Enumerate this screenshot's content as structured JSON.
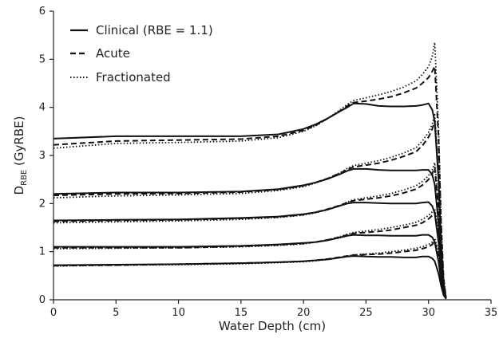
{
  "chart_data": {
    "type": "line",
    "xlabel": "Water Depth (cm)",
    "ylabel": {
      "main": "D",
      "subscript": "RBE",
      "unit": " (GyRBE)"
    },
    "xlim": [
      0,
      35
    ],
    "ylim": [
      0,
      6
    ],
    "xticks": [
      0,
      5,
      10,
      15,
      20,
      25,
      30,
      35
    ],
    "yticks": [
      0,
      1,
      2,
      3,
      4,
      5,
      6
    ],
    "grid": false,
    "legend_position": "top-left",
    "legend": [
      {
        "label": "Clinical (RBE = 1.1)",
        "style": "solid"
      },
      {
        "label": "Acute",
        "style": "dashed"
      },
      {
        "label": "Fractionated",
        "style": "dotted"
      }
    ],
    "groups": [
      {
        "group": 1,
        "series": [
          {
            "style": "solid",
            "x": [
              0,
              5,
              10,
              15,
              18,
              20,
              21,
              22,
              23,
              23.5,
              24,
              25,
              26,
              27,
              28,
              29,
              29.5,
              30,
              30.3,
              30.5,
              30.8,
              31,
              31.2,
              31.4
            ],
            "y": [
              0.72,
              0.73,
              0.74,
              0.76,
              0.78,
              0.8,
              0.82,
              0.84,
              0.88,
              0.9,
              0.91,
              0.9,
              0.89,
              0.89,
              0.88,
              0.88,
              0.9,
              0.9,
              0.86,
              0.8,
              0.55,
              0.3,
              0.1,
              0.02
            ]
          },
          {
            "style": "dashed",
            "x": [
              0,
              5,
              10,
              15,
              18,
              20,
              21,
              22,
              23,
              23.5,
              24,
              25,
              26,
              27,
              28,
              29,
              29.5,
              30,
              30.3,
              30.5,
              30.8,
              31,
              31.2,
              31.4
            ],
            "y": [
              0.71,
              0.72,
              0.74,
              0.76,
              0.78,
              0.8,
              0.82,
              0.85,
              0.89,
              0.91,
              0.93,
              0.94,
              0.95,
              0.97,
              1.0,
              1.03,
              1.06,
              1.1,
              1.15,
              1.22,
              0.9,
              0.45,
              0.15,
              0.02
            ]
          },
          {
            "style": "dotted",
            "x": [
              0,
              5,
              10,
              15,
              18,
              20,
              21,
              22,
              23,
              23.5,
              24,
              25,
              26,
              27,
              28,
              29,
              29.5,
              30,
              30.3,
              30.5,
              30.8,
              31,
              31.2,
              31.4
            ],
            "y": [
              0.7,
              0.72,
              0.73,
              0.75,
              0.77,
              0.79,
              0.81,
              0.84,
              0.88,
              0.91,
              0.93,
              0.95,
              0.97,
              1.0,
              1.03,
              1.07,
              1.1,
              1.15,
              1.2,
              1.28,
              1.0,
              0.5,
              0.18,
              0.02
            ]
          }
        ]
      },
      {
        "group": 2,
        "series": [
          {
            "style": "solid",
            "x": [
              0,
              5,
              10,
              15,
              18,
              20,
              21,
              22,
              23,
              23.5,
              24,
              25,
              26,
              27,
              28,
              29,
              29.5,
              30,
              30.3,
              30.5,
              30.8,
              31,
              31.2,
              31.4
            ],
            "y": [
              1.1,
              1.1,
              1.1,
              1.12,
              1.15,
              1.18,
              1.2,
              1.24,
              1.3,
              1.33,
              1.35,
              1.34,
              1.34,
              1.33,
              1.33,
              1.33,
              1.35,
              1.35,
              1.3,
              1.2,
              0.8,
              0.42,
              0.14,
              0.03
            ]
          },
          {
            "style": "dashed",
            "x": [
              0,
              5,
              10,
              15,
              18,
              20,
              21,
              22,
              23,
              23.5,
              24,
              25,
              26,
              27,
              28,
              29,
              29.5,
              30,
              30.3,
              30.5,
              30.8,
              31,
              31.2,
              31.4
            ],
            "y": [
              1.08,
              1.08,
              1.08,
              1.11,
              1.14,
              1.17,
              1.2,
              1.25,
              1.31,
              1.35,
              1.38,
              1.4,
              1.42,
              1.45,
              1.5,
              1.55,
              1.6,
              1.68,
              1.75,
              1.82,
              1.3,
              0.6,
              0.2,
              0.03
            ]
          },
          {
            "style": "dotted",
            "x": [
              0,
              5,
              10,
              15,
              18,
              20,
              21,
              22,
              23,
              23.5,
              24,
              25,
              26,
              27,
              28,
              29,
              29.5,
              30,
              30.3,
              30.5,
              30.8,
              31,
              31.2,
              31.4
            ],
            "y": [
              1.06,
              1.07,
              1.08,
              1.1,
              1.13,
              1.16,
              1.2,
              1.25,
              1.32,
              1.36,
              1.4,
              1.43,
              1.46,
              1.5,
              1.55,
              1.61,
              1.67,
              1.75,
              1.83,
              1.9,
              1.4,
              0.65,
              0.22,
              0.03
            ]
          }
        ]
      },
      {
        "group": 3,
        "series": [
          {
            "style": "solid",
            "x": [
              0,
              5,
              10,
              15,
              18,
              20,
              21,
              22,
              23,
              23.5,
              24,
              25,
              26,
              27,
              28,
              29,
              29.5,
              30,
              30.3,
              30.5,
              30.8,
              31,
              31.2,
              31.4
            ],
            "y": [
              1.65,
              1.66,
              1.67,
              1.7,
              1.73,
              1.78,
              1.82,
              1.88,
              1.96,
              2.0,
              2.02,
              2.02,
              2.01,
              2.0,
              2.0,
              2.0,
              2.02,
              2.03,
              1.95,
              1.8,
              1.2,
              0.6,
              0.2,
              0.03
            ]
          },
          {
            "style": "dashed",
            "x": [
              0,
              5,
              10,
              15,
              18,
              20,
              21,
              22,
              23,
              23.5,
              24,
              25,
              26,
              27,
              28,
              29,
              29.5,
              30,
              30.3,
              30.5,
              30.8,
              31,
              31.2,
              31.4
            ],
            "y": [
              1.63,
              1.65,
              1.66,
              1.69,
              1.72,
              1.77,
              1.82,
              1.89,
              1.97,
              2.02,
              2.06,
              2.09,
              2.12,
              2.16,
              2.22,
              2.3,
              2.38,
              2.5,
              2.62,
              2.75,
              1.9,
              0.85,
              0.28,
              0.03
            ]
          },
          {
            "style": "dotted",
            "x": [
              0,
              5,
              10,
              15,
              18,
              20,
              21,
              22,
              23,
              23.5,
              24,
              25,
              26,
              27,
              28,
              29,
              29.5,
              30,
              30.3,
              30.5,
              30.8,
              31,
              31.2,
              31.4
            ],
            "y": [
              1.6,
              1.62,
              1.64,
              1.67,
              1.71,
              1.76,
              1.81,
              1.88,
              1.97,
              2.03,
              2.08,
              2.12,
              2.16,
              2.21,
              2.28,
              2.37,
              2.46,
              2.58,
              2.7,
              2.85,
              2.0,
              0.9,
              0.3,
              0.03
            ]
          }
        ]
      },
      {
        "group": 4,
        "series": [
          {
            "style": "solid",
            "x": [
              0,
              5,
              10,
              15,
              18,
              20,
              21,
              22,
              23,
              23.5,
              24,
              25,
              26,
              27,
              28,
              29,
              29.5,
              30,
              30.3,
              30.5,
              30.8,
              31,
              31.2,
              31.4
            ],
            "y": [
              2.2,
              2.23,
              2.23,
              2.25,
              2.3,
              2.38,
              2.44,
              2.52,
              2.62,
              2.68,
              2.72,
              2.72,
              2.7,
              2.69,
              2.69,
              2.69,
              2.7,
              2.7,
              2.6,
              2.4,
              1.6,
              0.8,
              0.25,
              0.04
            ]
          },
          {
            "style": "dashed",
            "x": [
              0,
              5,
              10,
              15,
              18,
              20,
              21,
              22,
              23,
              23.5,
              24,
              25,
              26,
              27,
              28,
              29,
              29.5,
              30,
              30.3,
              30.5,
              30.8,
              31,
              31.2,
              31.4
            ],
            "y": [
              2.17,
              2.2,
              2.21,
              2.24,
              2.29,
              2.37,
              2.44,
              2.53,
              2.64,
              2.71,
              2.76,
              2.8,
              2.84,
              2.9,
              2.98,
              3.08,
              3.2,
              3.38,
              3.55,
              3.72,
              2.6,
              1.2,
              0.35,
              0.04
            ]
          },
          {
            "style": "dotted",
            "x": [
              0,
              5,
              10,
              15,
              18,
              20,
              21,
              22,
              23,
              23.5,
              24,
              25,
              26,
              27,
              28,
              29,
              29.5,
              30,
              30.3,
              30.5,
              30.8,
              31,
              31.2,
              31.4
            ],
            "y": [
              2.12,
              2.16,
              2.18,
              2.21,
              2.27,
              2.35,
              2.43,
              2.53,
              2.65,
              2.73,
              2.79,
              2.84,
              2.89,
              2.96,
              3.05,
              3.16,
              3.3,
              3.48,
              3.65,
              3.85,
              2.7,
              1.25,
              0.38,
              0.04
            ]
          }
        ]
      },
      {
        "group": 5,
        "series": [
          {
            "style": "solid",
            "x": [
              0,
              5,
              10,
              15,
              18,
              20,
              21,
              22,
              23,
              23.5,
              24,
              25,
              26,
              27,
              28,
              29,
              29.5,
              30,
              30.3,
              30.5,
              30.8,
              31,
              31.2,
              31.4
            ],
            "y": [
              3.35,
              3.4,
              3.4,
              3.4,
              3.44,
              3.55,
              3.65,
              3.78,
              3.93,
              4.0,
              4.08,
              4.07,
              4.03,
              4.02,
              4.02,
              4.03,
              4.05,
              4.08,
              3.95,
              3.7,
              2.5,
              1.2,
              0.35,
              0.04
            ]
          },
          {
            "style": "dashed",
            "x": [
              0,
              5,
              10,
              15,
              18,
              20,
              21,
              22,
              23,
              23.5,
              24,
              25,
              26,
              27,
              28,
              29,
              29.5,
              30,
              30.3,
              30.5,
              30.8,
              31,
              31.2,
              31.4
            ],
            "y": [
              3.22,
              3.3,
              3.32,
              3.34,
              3.4,
              3.52,
              3.63,
              3.78,
              3.94,
              4.03,
              4.1,
              4.13,
              4.17,
              4.22,
              4.3,
              4.4,
              4.5,
              4.62,
              4.75,
              4.85,
              3.4,
              1.6,
              0.45,
              0.04
            ]
          },
          {
            "style": "dotted",
            "x": [
              0,
              5,
              10,
              15,
              18,
              20,
              21,
              22,
              23,
              23.5,
              24,
              25,
              26,
              27,
              28,
              29,
              29.5,
              30,
              30.3,
              30.5,
              30.8,
              31,
              31.2,
              31.4
            ],
            "y": [
              3.15,
              3.25,
              3.27,
              3.3,
              3.37,
              3.5,
              3.62,
              3.78,
              3.96,
              4.06,
              4.14,
              4.2,
              4.26,
              4.33,
              4.42,
              4.55,
              4.68,
              4.85,
              5.05,
              5.35,
              3.6,
              1.7,
              0.5,
              0.04
            ]
          }
        ]
      }
    ]
  }
}
